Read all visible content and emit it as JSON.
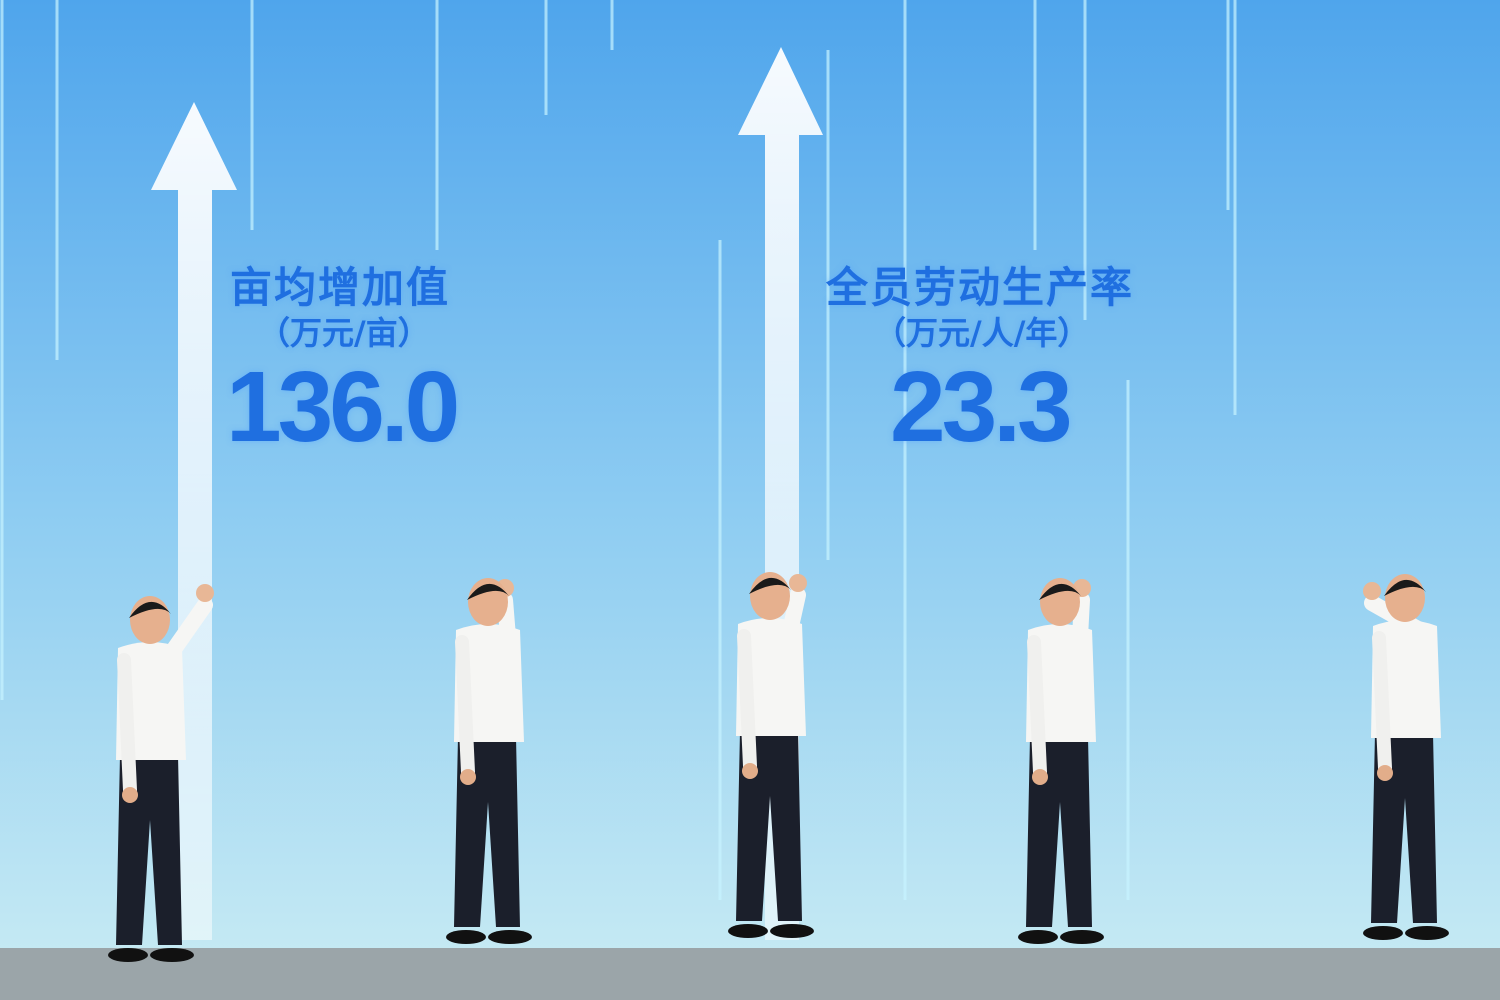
{
  "screen": {
    "colors": {
      "top": "#52a8ec",
      "bottom": "#bfe7f3",
      "text": "#1f6fe0",
      "floor": "#9aa4a8"
    },
    "metrics": [
      {
        "title": "亩均增加值",
        "unit": "（万元/亩）",
        "value": "136.0",
        "icon": "arrow-up-icon"
      },
      {
        "title": "全员劳动生产率",
        "unit": "（万元/人/年）",
        "value": "23.3",
        "icon": "arrow-up-icon"
      }
    ]
  }
}
